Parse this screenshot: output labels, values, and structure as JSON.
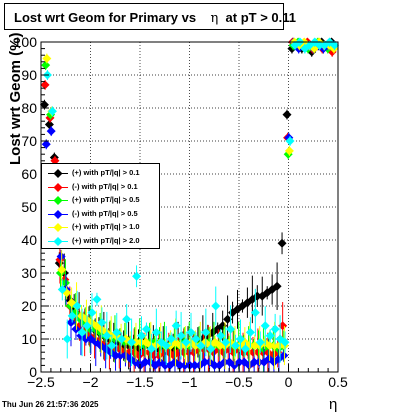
{
  "title_parts": [
    "Lost wrt Geom for Primary vs",
    "η",
    "at pT > 0.11"
  ],
  "datestamp": "Thu Jun 26 21:57:36 2025",
  "chart_data": {
    "type": "scatter",
    "title": "Lost wrt Geom for Primary vs η at pT > 0.11",
    "xlabel": "η",
    "ylabel": "Lost wrt Geom (%)",
    "xlim": [
      -2.5,
      0.5
    ],
    "ylim": [
      0,
      100
    ],
    "x_ticks": [
      -2.5,
      -2,
      -1.5,
      -1,
      -0.5,
      0,
      0.5
    ],
    "x_tick_labels": [
      "−2.5",
      "−2",
      "−1.5",
      "−1",
      "−0.5",
      "0",
      "0.5"
    ],
    "y_ticks": [
      0,
      10,
      20,
      30,
      40,
      50,
      60,
      70,
      80,
      90,
      100
    ],
    "y_tick_labels": [
      "0",
      "10",
      "20",
      "30",
      "40",
      "50",
      "60",
      "70",
      "80",
      "90",
      "100"
    ],
    "grid": true,
    "legend_position": "middle-left",
    "series": [
      {
        "name": "(+) with pT/|q| > 0.1",
        "color": "#000000",
        "x": [
          -2.45,
          -2.4,
          -2.35,
          -2.3,
          -2.25,
          -2.2,
          -2.15,
          -2.1,
          -2.05,
          -2.0,
          -1.95,
          -1.9,
          -1.85,
          -1.8,
          -1.75,
          -1.7,
          -1.65,
          -1.6,
          -1.55,
          -1.5,
          -1.45,
          -1.4,
          -1.35,
          -1.3,
          -1.25,
          -1.2,
          -1.15,
          -1.1,
          -1.05,
          -1.0,
          -0.95,
          -0.9,
          -0.85,
          -0.8,
          -0.75,
          -0.7,
          -0.65,
          -0.6,
          -0.55,
          -0.5,
          -0.45,
          -0.4,
          -0.35,
          -0.3,
          -0.25,
          -0.2,
          -0.15,
          -0.1,
          -0.05,
          0.0,
          0.05,
          0.1,
          0.15,
          0.2,
          0.25,
          0.3,
          0.35,
          0.4,
          0.45
        ],
        "y": [
          81,
          75,
          65,
          33,
          30,
          22,
          19,
          17,
          15,
          14,
          13,
          12,
          11,
          10,
          9,
          9,
          8,
          8,
          8,
          7,
          8,
          8,
          7,
          7,
          8,
          8,
          7,
          8,
          9,
          8,
          9,
          9,
          10,
          11,
          12,
          13,
          14,
          16,
          18,
          19,
          20,
          21,
          22,
          23,
          23,
          24,
          25,
          26,
          39,
          78,
          98,
          99,
          98,
          99,
          97,
          99,
          100,
          99,
          100
        ]
      },
      {
        "name": "(-) with pT/|q| > 0.1",
        "color": "#ff0000",
        "x": [
          -2.45,
          -2.4,
          -2.35,
          -2.3,
          -2.25,
          -2.2,
          -2.15,
          -2.1,
          -2.05,
          -2.0,
          -1.95,
          -1.9,
          -1.85,
          -1.8,
          -1.75,
          -1.7,
          -1.65,
          -1.6,
          -1.55,
          -1.5,
          -1.45,
          -1.4,
          -1.35,
          -1.3,
          -1.25,
          -1.2,
          -1.15,
          -1.1,
          -1.05,
          -1.0,
          -0.95,
          -0.9,
          -0.85,
          -0.8,
          -0.75,
          -0.7,
          -0.65,
          -0.6,
          -0.55,
          -0.5,
          -0.45,
          -0.4,
          -0.35,
          -0.3,
          -0.25,
          -0.2,
          -0.15,
          -0.1,
          -0.05,
          0.0,
          0.05,
          0.1,
          0.15,
          0.2,
          0.25,
          0.3,
          0.35,
          0.4,
          0.45
        ],
        "y": [
          87,
          77,
          64,
          34,
          28,
          20,
          17,
          14,
          12,
          11,
          10,
          9,
          8,
          8,
          7,
          7,
          6,
          6,
          6,
          5,
          6,
          6,
          5,
          5,
          6,
          6,
          5,
          6,
          6,
          6,
          6,
          7,
          7,
          7,
          6,
          7,
          6,
          7,
          6,
          7,
          6,
          6,
          6,
          6,
          6,
          6,
          5,
          6,
          14,
          71,
          100,
          99,
          99,
          100,
          98,
          99,
          98,
          99,
          97
        ]
      },
      {
        "name": "(+) with pT/|q| > 0.5",
        "color": "#00ff00",
        "x": [
          -2.45,
          -2.4,
          -2.35,
          -2.3,
          -2.25,
          -2.2,
          -2.15,
          -2.1,
          -2.05,
          -2.0,
          -1.95,
          -1.9,
          -1.85,
          -1.8,
          -1.75,
          -1.7,
          -1.65,
          -1.6,
          -1.55,
          -1.5,
          -1.45,
          -1.4,
          -1.35,
          -1.3,
          -1.25,
          -1.2,
          -1.15,
          -1.1,
          -1.05,
          -1.0,
          -0.95,
          -0.9,
          -0.85,
          -0.8,
          -0.75,
          -0.7,
          -0.65,
          -0.6,
          -0.55,
          -0.5,
          -0.45,
          -0.4,
          -0.35,
          -0.3,
          -0.25,
          -0.2,
          -0.15,
          -0.1,
          -0.05,
          0.0,
          0.05,
          0.1,
          0.15,
          0.2,
          0.25,
          0.3,
          0.35,
          0.4,
          0.45
        ],
        "y": [
          93,
          78,
          60,
          30,
          27,
          20,
          18,
          16,
          15,
          13,
          13,
          12,
          11,
          11,
          10,
          10,
          9,
          9,
          9,
          9,
          8,
          9,
          9,
          9,
          8,
          8,
          9,
          8,
          9,
          8,
          9,
          8,
          8,
          9,
          8,
          8,
          8,
          9,
          8,
          8,
          8,
          8,
          8,
          8,
          7,
          8,
          8,
          7,
          8,
          66,
          99,
          100,
          99,
          98,
          99,
          100,
          99,
          98,
          99
        ]
      },
      {
        "name": "(-) with pT/|q| > 0.5",
        "color": "#0000ff",
        "x": [
          -2.45,
          -2.4,
          -2.35,
          -2.3,
          -2.25,
          -2.2,
          -2.15,
          -2.1,
          -2.05,
          -2.0,
          -1.95,
          -1.9,
          -1.85,
          -1.8,
          -1.75,
          -1.7,
          -1.65,
          -1.6,
          -1.55,
          -1.5,
          -1.45,
          -1.4,
          -1.35,
          -1.3,
          -1.25,
          -1.2,
          -1.15,
          -1.1,
          -1.05,
          -1.0,
          -0.95,
          -0.9,
          -0.85,
          -0.8,
          -0.75,
          -0.7,
          -0.65,
          -0.6,
          -0.55,
          -0.5,
          -0.45,
          -0.4,
          -0.35,
          -0.3,
          -0.25,
          -0.2,
          -0.15,
          -0.1,
          -0.05,
          0.0,
          0.05,
          0.1,
          0.15,
          0.2,
          0.25,
          0.3,
          0.35,
          0.4,
          0.45
        ],
        "y": [
          69,
          73,
          55,
          35,
          25,
          15,
          13,
          11,
          10,
          10,
          9,
          8,
          7,
          6,
          5,
          5,
          5,
          4,
          3,
          2,
          3,
          3,
          2,
          3,
          2,
          2,
          3,
          2,
          2,
          2,
          2,
          2,
          3,
          3,
          2,
          2,
          3,
          3,
          2,
          3,
          3,
          2,
          3,
          3,
          3,
          4,
          3,
          4,
          5,
          71,
          100,
          98,
          99,
          99,
          98,
          99,
          98,
          99,
          99
        ]
      },
      {
        "name": "(+) with pT/|q| > 1.0",
        "color": "#ffff00",
        "x": [
          -2.45,
          -2.4,
          -2.35,
          -2.3,
          -2.25,
          -2.2,
          -2.15,
          -2.1,
          -2.05,
          -2.0,
          -1.95,
          -1.9,
          -1.85,
          -1.8,
          -1.75,
          -1.7,
          -1.65,
          -1.6,
          -1.55,
          -1.5,
          -1.45,
          -1.4,
          -1.35,
          -1.3,
          -1.25,
          -1.2,
          -1.15,
          -1.1,
          -1.05,
          -1.0,
          -0.95,
          -0.9,
          -0.85,
          -0.8,
          -0.75,
          -0.7,
          -0.65,
          -0.6,
          -0.55,
          -0.5,
          -0.45,
          -0.4,
          -0.35,
          -0.3,
          -0.25,
          -0.2,
          -0.15,
          -0.1,
          -0.05,
          0.0,
          0.05,
          0.1,
          0.15,
          0.2,
          0.25,
          0.3,
          0.35,
          0.4,
          0.45
        ],
        "y": [
          95,
          79,
          58,
          31,
          24,
          21,
          20,
          17,
          16,
          15,
          14,
          13,
          12,
          11,
          11,
          10,
          10,
          9,
          9,
          9,
          9,
          8,
          8,
          9,
          8,
          8,
          9,
          8,
          8,
          9,
          8,
          8,
          9,
          8,
          9,
          8,
          8,
          9,
          8,
          8,
          9,
          8,
          8,
          8,
          9,
          8,
          8,
          8,
          8,
          67,
          100,
          99,
          100,
          99,
          98,
          100,
          99,
          99,
          98
        ]
      },
      {
        "name": "(+) with pT/|q| > 2.0",
        "color": "#00ffff",
        "x": [
          -2.45,
          -2.4,
          -2.35,
          -2.3,
          -2.25,
          -2.2,
          -2.15,
          -2.1,
          -2.05,
          -2.0,
          -1.95,
          -1.9,
          -1.85,
          -1.8,
          -1.75,
          -1.7,
          -1.65,
          -1.6,
          -1.55,
          -1.5,
          -1.45,
          -1.4,
          -1.35,
          -1.3,
          -1.25,
          -1.2,
          -1.15,
          -1.1,
          -1.05,
          -1.0,
          -0.95,
          -0.9,
          -0.85,
          -0.8,
          -0.75,
          -0.7,
          -0.65,
          -0.6,
          -0.55,
          -0.5,
          -0.45,
          -0.4,
          -0.35,
          -0.3,
          -0.25,
          -0.2,
          -0.15,
          -0.1,
          -0.05,
          0.0,
          0.05,
          0.1,
          0.15,
          0.2,
          0.25,
          0.3,
          0.35,
          0.4,
          0.45
        ],
        "y": [
          90,
          79,
          61,
          25,
          10,
          17,
          20,
          12,
          14,
          18,
          22,
          15,
          11,
          8,
          12,
          10,
          16,
          9,
          29,
          11,
          13,
          7,
          12,
          9,
          8,
          10,
          14,
          11,
          9,
          12,
          10,
          8,
          12,
          7,
          20,
          11,
          9,
          13,
          8,
          10,
          7,
          12,
          18,
          9,
          14,
          11,
          13,
          10,
          9,
          70,
          99,
          100,
          98,
          99,
          100,
          99,
          99,
          100,
          99
        ]
      }
    ]
  }
}
